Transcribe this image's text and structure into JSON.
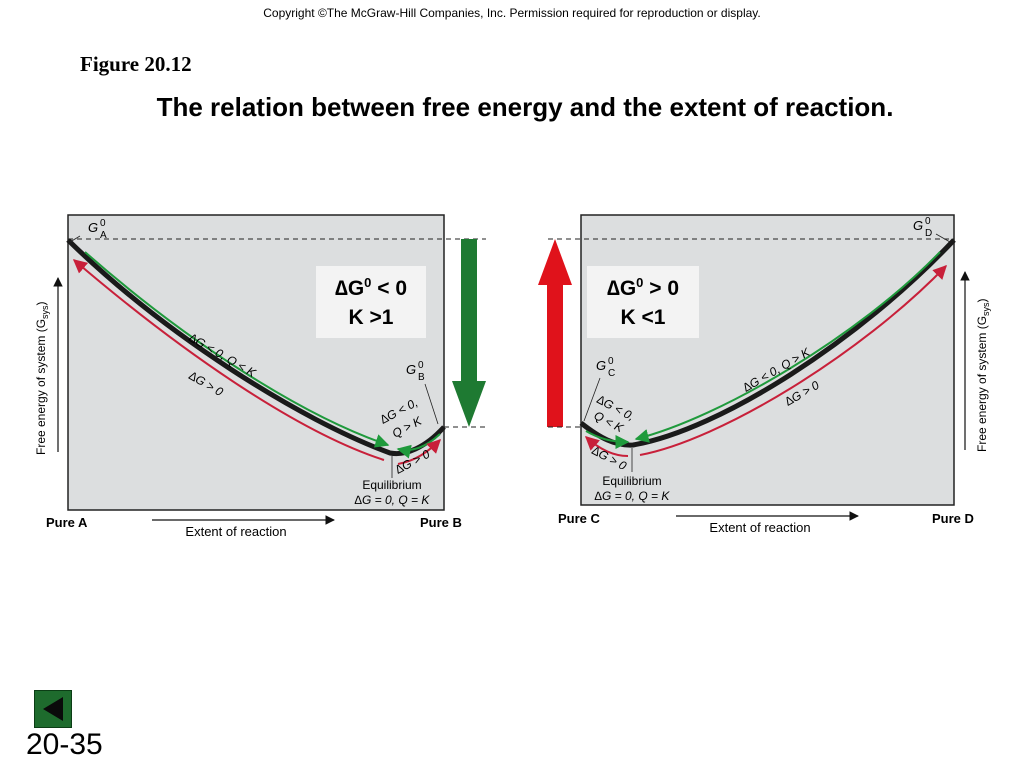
{
  "copyright": "Copyright ©The McGraw-Hill Companies, Inc.  Permission required for reproduction or display.",
  "figure_label": "Figure 20.12",
  "title": "The relation between free energy and the extent of reaction.",
  "left_panel": {
    "start_label": "G",
    "start_sup": "0",
    "start_sub": "A",
    "min_label": "G",
    "min_sup": "0",
    "min_sub": "B",
    "y_axis_label": "Free energy of system (G",
    "y_axis_sub": "sys",
    "y_axis_close": ")",
    "x_axis_label": "Extent of reaction",
    "x_start": "Pure A",
    "x_end": "Pure B",
    "box_line1": "∆G",
    "box_line1_sup": "0",
    "box_line1_rest": " < 0",
    "box_line2": "K >1",
    "curve_upper_label": "∆G < 0, Q < K",
    "curve_lower_label": "∆G > 0",
    "right_upper_line1": "∆G < 0,",
    "right_upper_line2": "Q > K",
    "right_lower_label": "∆G > 0",
    "equilibrium_title": "Equilibrium",
    "equilibrium_cond": "∆G = 0, Q = K"
  },
  "right_panel": {
    "end_label": "G",
    "end_sup": "0",
    "end_sub": "D",
    "min_label": "G",
    "min_sup": "0",
    "min_sub": "C",
    "y_axis_label": "Free energy of system (G",
    "y_axis_sub": "sys",
    "y_axis_close": ")",
    "x_axis_label": "Extent of reaction",
    "x_start": "Pure C",
    "x_end": "Pure D",
    "box_line1": "∆G",
    "box_line1_sup": "0",
    "box_line1_rest": " > 0",
    "box_line2": "K <1",
    "curve_upper_label": "∆G < 0, Q > K",
    "curve_lower_label": "∆G > 0",
    "left_upper_line1": "∆G < 0,",
    "left_upper_line2": "Q < K",
    "left_lower_label": "∆G > 0",
    "equilibrium_title": "Equilibrium",
    "equilibrium_cond": "∆G = 0, Q = K"
  },
  "colors": {
    "panel_fill": "#dcdedf",
    "curve": "#1a1a1a",
    "green_arrow": "#1e7a32",
    "red_arrow": "#e0121b",
    "green_curve_arrow": "#1f9a3c",
    "red_curve_arrow": "#c8203a"
  },
  "slide_number": "20-35",
  "nav_icon": "back-triangle-icon"
}
